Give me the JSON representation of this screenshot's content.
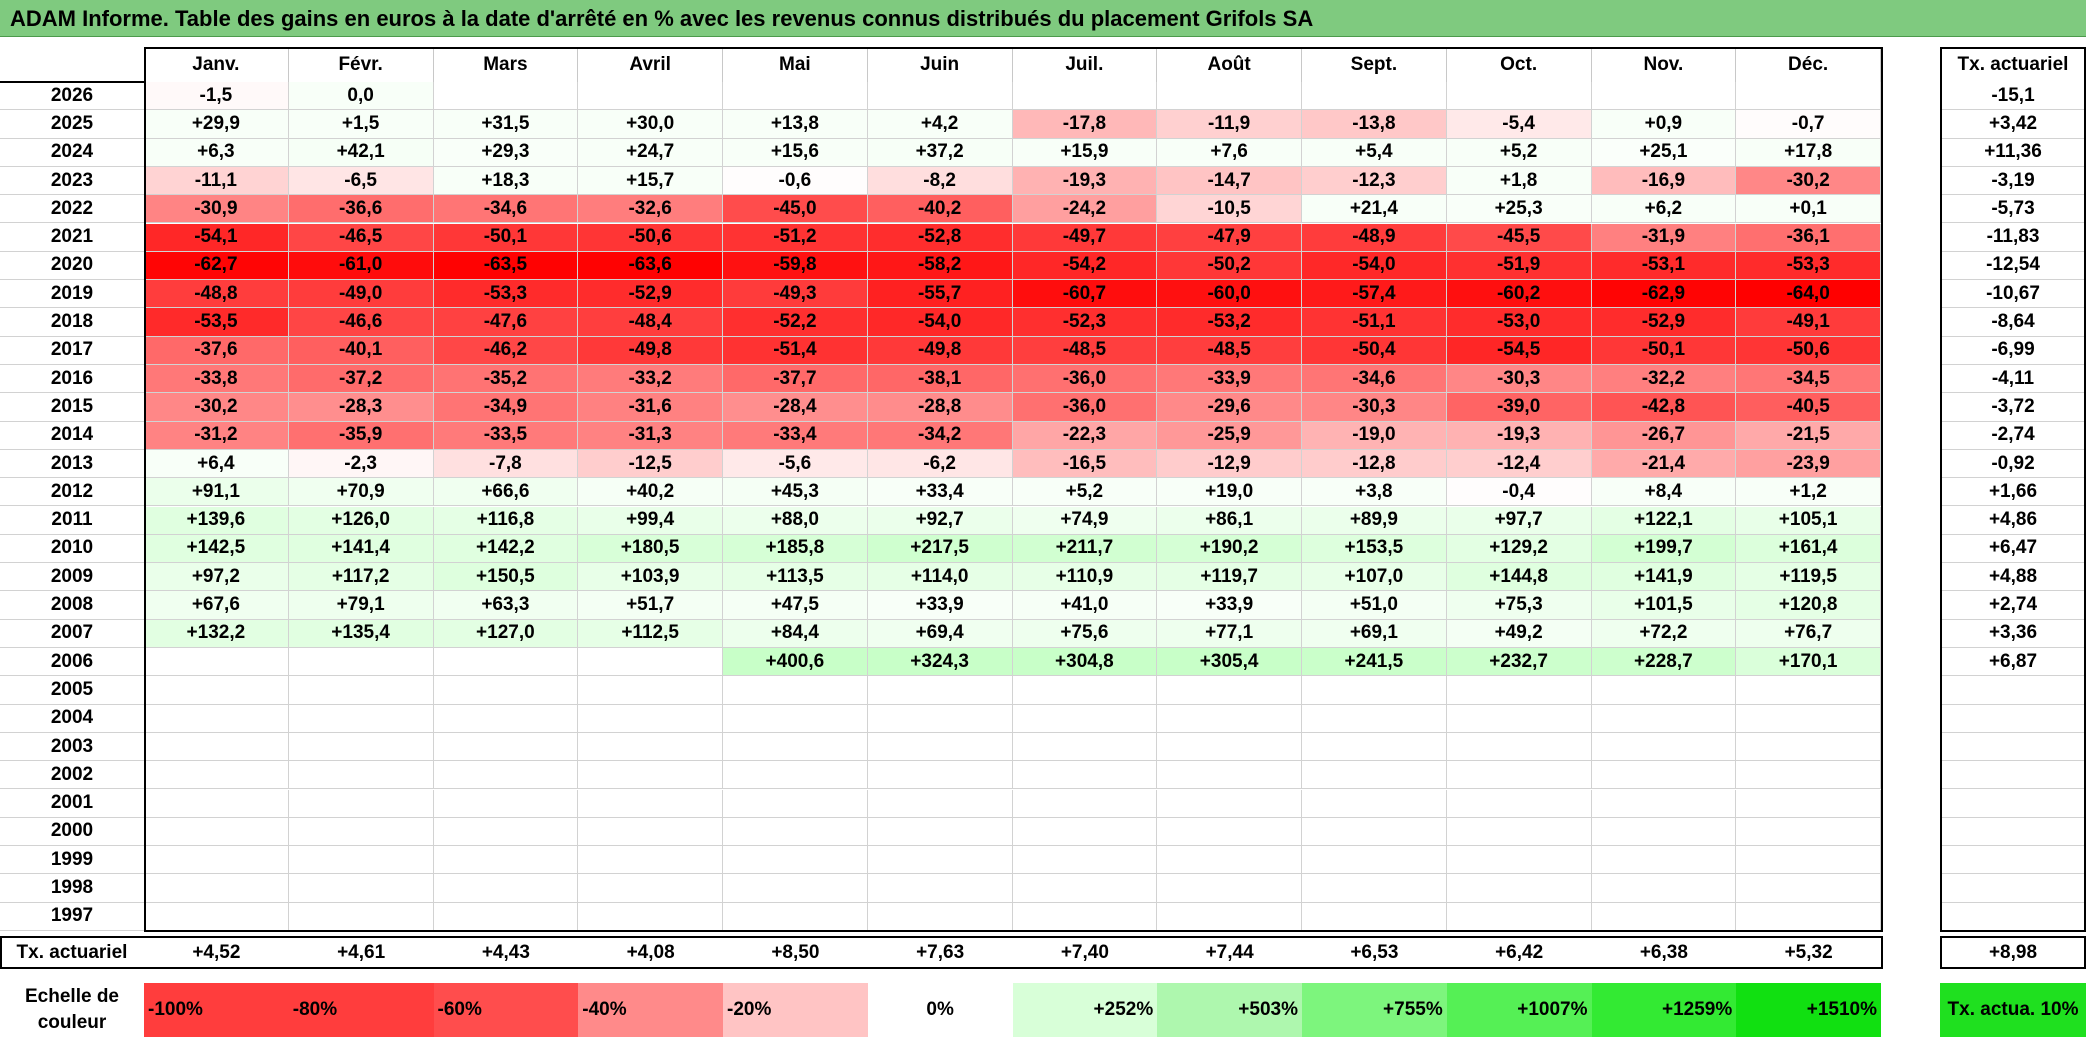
{
  "title": "ADAM Informe. Table des gains en euros à la date d'arrêté en % avec les revenus connus distribués du placement Grifols SA",
  "months": [
    "Janv.",
    "Févr.",
    "Mars",
    "Avril",
    "Mai",
    "Juin",
    "Juil.",
    "Août",
    "Sept.",
    "Oct.",
    "Nov.",
    "Déc."
  ],
  "actuarial_header": "Tx. actuariel",
  "rows": [
    {
      "year": "2026",
      "values": [
        "-1,5",
        "0,0",
        "",
        "",
        "",
        "",
        "",
        "",
        "",
        "",
        "",
        ""
      ],
      "rate": "-15,1"
    },
    {
      "year": "2025",
      "values": [
        "+29,9",
        "+1,5",
        "+31,5",
        "+30,0",
        "+13,8",
        "+4,2",
        "-17,8",
        "-11,9",
        "-13,8",
        "-5,4",
        "+0,9",
        "-0,7"
      ],
      "rate": "+3,42"
    },
    {
      "year": "2024",
      "values": [
        "+6,3",
        "+42,1",
        "+29,3",
        "+24,7",
        "+15,6",
        "+37,2",
        "+15,9",
        "+7,6",
        "+5,4",
        "+5,2",
        "+25,1",
        "+17,8"
      ],
      "rate": "+11,36"
    },
    {
      "year": "2023",
      "values": [
        "-11,1",
        "-6,5",
        "+18,3",
        "+15,7",
        "-0,6",
        "-8,2",
        "-19,3",
        "-14,7",
        "-12,3",
        "+1,8",
        "-16,9",
        "-30,2"
      ],
      "rate": "-3,19"
    },
    {
      "year": "2022",
      "values": [
        "-30,9",
        "-36,6",
        "-34,6",
        "-32,6",
        "-45,0",
        "-40,2",
        "-24,2",
        "-10,5",
        "+21,4",
        "+25,3",
        "+6,2",
        "+0,1"
      ],
      "rate": "-5,73"
    },
    {
      "year": "2021",
      "values": [
        "-54,1",
        "-46,5",
        "-50,1",
        "-50,6",
        "-51,2",
        "-52,8",
        "-49,7",
        "-47,9",
        "-48,9",
        "-45,5",
        "-31,9",
        "-36,1"
      ],
      "rate": "-11,83"
    },
    {
      "year": "2020",
      "values": [
        "-62,7",
        "-61,0",
        "-63,5",
        "-63,6",
        "-59,8",
        "-58,2",
        "-54,2",
        "-50,2",
        "-54,0",
        "-51,9",
        "-53,1",
        "-53,3"
      ],
      "rate": "-12,54"
    },
    {
      "year": "2019",
      "values": [
        "-48,8",
        "-49,0",
        "-53,3",
        "-52,9",
        "-49,3",
        "-55,7",
        "-60,7",
        "-60,0",
        "-57,4",
        "-60,2",
        "-62,9",
        "-64,0"
      ],
      "rate": "-10,67"
    },
    {
      "year": "2018",
      "values": [
        "-53,5",
        "-46,6",
        "-47,6",
        "-48,4",
        "-52,2",
        "-54,0",
        "-52,3",
        "-53,2",
        "-51,1",
        "-53,0",
        "-52,9",
        "-49,1"
      ],
      "rate": "-8,64"
    },
    {
      "year": "2017",
      "values": [
        "-37,6",
        "-40,1",
        "-46,2",
        "-49,8",
        "-51,4",
        "-49,8",
        "-48,5",
        "-48,5",
        "-50,4",
        "-54,5",
        "-50,1",
        "-50,6"
      ],
      "rate": "-6,99"
    },
    {
      "year": "2016",
      "values": [
        "-33,8",
        "-37,2",
        "-35,2",
        "-33,2",
        "-37,7",
        "-38,1",
        "-36,0",
        "-33,9",
        "-34,6",
        "-30,3",
        "-32,2",
        "-34,5"
      ],
      "rate": "-4,11"
    },
    {
      "year": "2015",
      "values": [
        "-30,2",
        "-28,3",
        "-34,9",
        "-31,6",
        "-28,4",
        "-28,8",
        "-36,0",
        "-29,6",
        "-30,3",
        "-39,0",
        "-42,8",
        "-40,5"
      ],
      "rate": "-3,72"
    },
    {
      "year": "2014",
      "values": [
        "-31,2",
        "-35,9",
        "-33,5",
        "-31,3",
        "-33,4",
        "-34,2",
        "-22,3",
        "-25,9",
        "-19,0",
        "-19,3",
        "-26,7",
        "-21,5"
      ],
      "rate": "-2,74"
    },
    {
      "year": "2013",
      "values": [
        "+6,4",
        "-2,3",
        "-7,8",
        "-12,5",
        "-5,6",
        "-6,2",
        "-16,5",
        "-12,9",
        "-12,8",
        "-12,4",
        "-21,4",
        "-23,9"
      ],
      "rate": "-0,92"
    },
    {
      "year": "2012",
      "values": [
        "+91,1",
        "+70,9",
        "+66,6",
        "+40,2",
        "+45,3",
        "+33,4",
        "+5,2",
        "+19,0",
        "+3,8",
        "-0,4",
        "+8,4",
        "+1,2"
      ],
      "rate": "+1,66"
    },
    {
      "year": "2011",
      "values": [
        "+139,6",
        "+126,0",
        "+116,8",
        "+99,4",
        "+88,0",
        "+92,7",
        "+74,9",
        "+86,1",
        "+89,9",
        "+97,7",
        "+122,1",
        "+105,1"
      ],
      "rate": "+4,86"
    },
    {
      "year": "2010",
      "values": [
        "+142,5",
        "+141,4",
        "+142,2",
        "+180,5",
        "+185,8",
        "+217,5",
        "+211,7",
        "+190,2",
        "+153,5",
        "+129,2",
        "+199,7",
        "+161,4"
      ],
      "rate": "+6,47"
    },
    {
      "year": "2009",
      "values": [
        "+97,2",
        "+117,2",
        "+150,5",
        "+103,9",
        "+113,5",
        "+114,0",
        "+110,9",
        "+119,7",
        "+107,0",
        "+144,8",
        "+141,9",
        "+119,5"
      ],
      "rate": "+4,88"
    },
    {
      "year": "2008",
      "values": [
        "+67,6",
        "+79,1",
        "+63,3",
        "+51,7",
        "+47,5",
        "+33,9",
        "+41,0",
        "+33,9",
        "+51,0",
        "+75,3",
        "+101,5",
        "+120,8"
      ],
      "rate": "+2,74"
    },
    {
      "year": "2007",
      "values": [
        "+132,2",
        "+135,4",
        "+127,0",
        "+112,5",
        "+84,4",
        "+69,4",
        "+75,6",
        "+77,1",
        "+69,1",
        "+49,2",
        "+72,2",
        "+76,7"
      ],
      "rate": "+3,36"
    },
    {
      "year": "2006",
      "values": [
        "",
        "",
        "",
        "",
        "+400,6",
        "+324,3",
        "+304,8",
        "+305,4",
        "+241,5",
        "+232,7",
        "+228,7",
        "+170,1"
      ],
      "rate": "+6,87"
    },
    {
      "year": "2005",
      "values": [
        "",
        "",
        "",
        "",
        "",
        "",
        "",
        "",
        "",
        "",
        "",
        ""
      ],
      "rate": ""
    },
    {
      "year": "2004",
      "values": [
        "",
        "",
        "",
        "",
        "",
        "",
        "",
        "",
        "",
        "",
        "",
        ""
      ],
      "rate": ""
    },
    {
      "year": "2003",
      "values": [
        "",
        "",
        "",
        "",
        "",
        "",
        "",
        "",
        "",
        "",
        "",
        ""
      ],
      "rate": ""
    },
    {
      "year": "2002",
      "values": [
        "",
        "",
        "",
        "",
        "",
        "",
        "",
        "",
        "",
        "",
        "",
        ""
      ],
      "rate": ""
    },
    {
      "year": "2001",
      "values": [
        "",
        "",
        "",
        "",
        "",
        "",
        "",
        "",
        "",
        "",
        "",
        ""
      ],
      "rate": ""
    },
    {
      "year": "2000",
      "values": [
        "",
        "",
        "",
        "",
        "",
        "",
        "",
        "",
        "",
        "",
        "",
        ""
      ],
      "rate": ""
    },
    {
      "year": "1999",
      "values": [
        "",
        "",
        "",
        "",
        "",
        "",
        "",
        "",
        "",
        "",
        "",
        ""
      ],
      "rate": ""
    },
    {
      "year": "1998",
      "values": [
        "",
        "",
        "",
        "",
        "",
        "",
        "",
        "",
        "",
        "",
        "",
        ""
      ],
      "rate": ""
    },
    {
      "year": "1997",
      "values": [
        "",
        "",
        "",
        "",
        "",
        "",
        "",
        "",
        "",
        "",
        "",
        ""
      ],
      "rate": ""
    }
  ],
  "footer": {
    "label": "Tx. actuariel",
    "values": [
      "+4,52",
      "+4,61",
      "+4,43",
      "+4,08",
      "+8,50",
      "+7,63",
      "+7,40",
      "+7,44",
      "+6,53",
      "+6,42",
      "+6,38",
      "+5,32"
    ],
    "total": "+8,98"
  },
  "color_scale": {
    "label": "Echelle de couleur",
    "steps": [
      {
        "label": "-100%",
        "color": "#ff3d3d"
      },
      {
        "label": "-80%",
        "color": "#ff3d3d"
      },
      {
        "label": "-60%",
        "color": "#ff4d4d"
      },
      {
        "label": "-40%",
        "color": "#ff8a8a"
      },
      {
        "label": "-20%",
        "color": "#ffc4c4"
      },
      {
        "label": "0%",
        "color": "#ffffff"
      },
      {
        "label": "+252%",
        "color": "#d8ffd8"
      },
      {
        "label": "+503%",
        "color": "#aef7ae"
      },
      {
        "label": "+755%",
        "color": "#7df57d"
      },
      {
        "label": "+1007%",
        "color": "#55f055"
      },
      {
        "label": "+1259%",
        "color": "#33ea33"
      },
      {
        "label": "+1510%",
        "color": "#11e011"
      }
    ],
    "final_label": "Tx. actua. 10%",
    "final_color": "#1fe01f"
  },
  "colors": {
    "title_bg": "#7fca7f",
    "negative_max": "#ff0000",
    "positive_max": "#00e000"
  }
}
